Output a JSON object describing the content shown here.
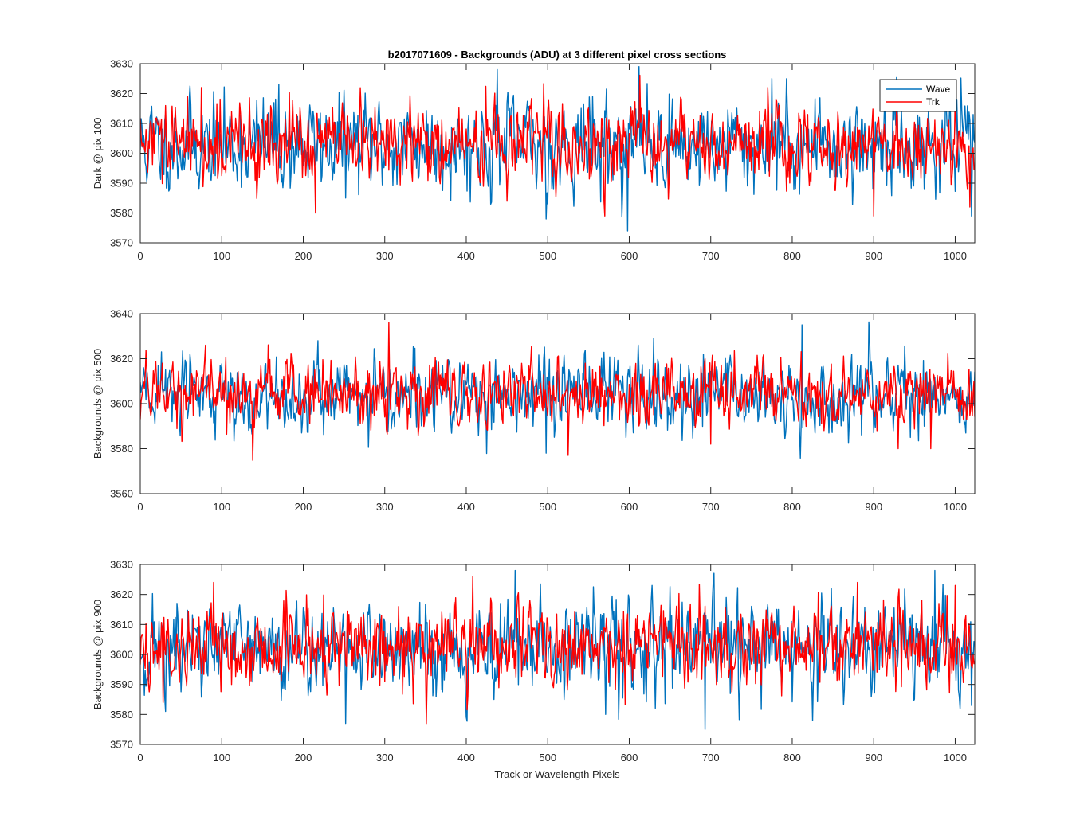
{
  "figure": {
    "title": "b2017071609 - Backgrounds (ADU) at 3 different pixel cross sections",
    "xlabel": "Track or Wavelength Pixels"
  },
  "legend": {
    "placement": "top-right",
    "entries": [
      {
        "name": "Wave",
        "color": "#0072BD"
      },
      {
        "name": "Trk",
        "color": "#FF0000"
      }
    ]
  },
  "chart_data": [
    {
      "type": "line",
      "ylabel": "Dark @ pix 100",
      "xlim": [
        0,
        1024
      ],
      "ylim": [
        3570,
        3630
      ],
      "xticks": [
        "0",
        "100",
        "200",
        "300",
        "400",
        "500",
        "600",
        "700",
        "800",
        "900",
        "1000"
      ],
      "yticks": [
        "3570",
        "3580",
        "3590",
        "3600",
        "3610",
        "3620",
        "3630"
      ],
      "series": [
        {
          "name": "Wave",
          "color": "#0072BD",
          "mean": 3603,
          "sd": 7.2,
          "seed": 11,
          "extremes": [
            [
              170,
              3623
            ],
            [
              252,
              3585
            ],
            [
              438,
              3628
            ],
            [
              498,
              3578
            ],
            [
              598,
              3574
            ],
            [
              612,
              3629
            ],
            [
              775,
              3625
            ],
            [
              1020,
              3579
            ]
          ]
        },
        {
          "name": "Trk",
          "color": "#FF0000",
          "mean": 3603,
          "sd": 6.2,
          "seed": 29,
          "extremes": [
            [
              75,
              3622
            ],
            [
              215,
              3580
            ],
            [
              570,
              3579
            ],
            [
              770,
              3622
            ],
            [
              900,
              3579
            ],
            [
              1000,
              3621
            ],
            [
              1018,
              3582
            ]
          ]
        }
      ]
    },
    {
      "type": "line",
      "ylabel": "Backgrounds @ pix 500",
      "xlim": [
        0,
        1024
      ],
      "ylim": [
        3560,
        3640
      ],
      "xticks": [
        "0",
        "100",
        "200",
        "300",
        "400",
        "500",
        "600",
        "700",
        "800",
        "900",
        "1000"
      ],
      "yticks": [
        "3560",
        "3580",
        "3600",
        "3620",
        "3640"
      ],
      "series": [
        {
          "name": "Wave",
          "color": "#0072BD",
          "mean": 3604,
          "sd": 7.8,
          "seed": 43,
          "extremes": [
            [
              218,
              3628
            ],
            [
              498,
              3578
            ],
            [
              630,
              3629
            ],
            [
              812,
              3635
            ],
            [
              895,
              3629
            ],
            [
              945,
              3585
            ]
          ]
        },
        {
          "name": "Trk",
          "color": "#FF0000",
          "mean": 3604,
          "sd": 7.0,
          "seed": 57,
          "extremes": [
            [
              80,
              3626
            ],
            [
              305,
              3636
            ],
            [
              525,
              3577
            ],
            [
              700,
              3582
            ],
            [
              930,
              3580
            ],
            [
              970,
              3580
            ]
          ]
        }
      ]
    },
    {
      "type": "line",
      "ylabel": "Backgrounds @ pix 900",
      "xlim": [
        0,
        1024
      ],
      "ylim": [
        3570,
        3630
      ],
      "xticks": [
        "0",
        "100",
        "200",
        "300",
        "400",
        "500",
        "600",
        "700",
        "800",
        "900",
        "1000"
      ],
      "yticks": [
        "3570",
        "3580",
        "3590",
        "3600",
        "3610",
        "3620",
        "3630"
      ],
      "series": [
        {
          "name": "Wave",
          "color": "#0072BD",
          "mean": 3602,
          "sd": 7.4,
          "seed": 71,
          "extremes": [
            [
              252,
              3577
            ],
            [
              460,
              3628
            ],
            [
              693,
              3575
            ],
            [
              825,
              3578
            ],
            [
              975,
              3628
            ],
            [
              1020,
              3583
            ]
          ]
        },
        {
          "name": "Trk",
          "color": "#FF0000",
          "mean": 3603,
          "sd": 6.6,
          "seed": 89,
          "extremes": [
            [
              28,
              3584
            ],
            [
              90,
              3624
            ],
            [
              408,
              3626
            ],
            [
              880,
              3624
            ],
            [
              1000,
              3623
            ]
          ]
        }
      ]
    }
  ]
}
